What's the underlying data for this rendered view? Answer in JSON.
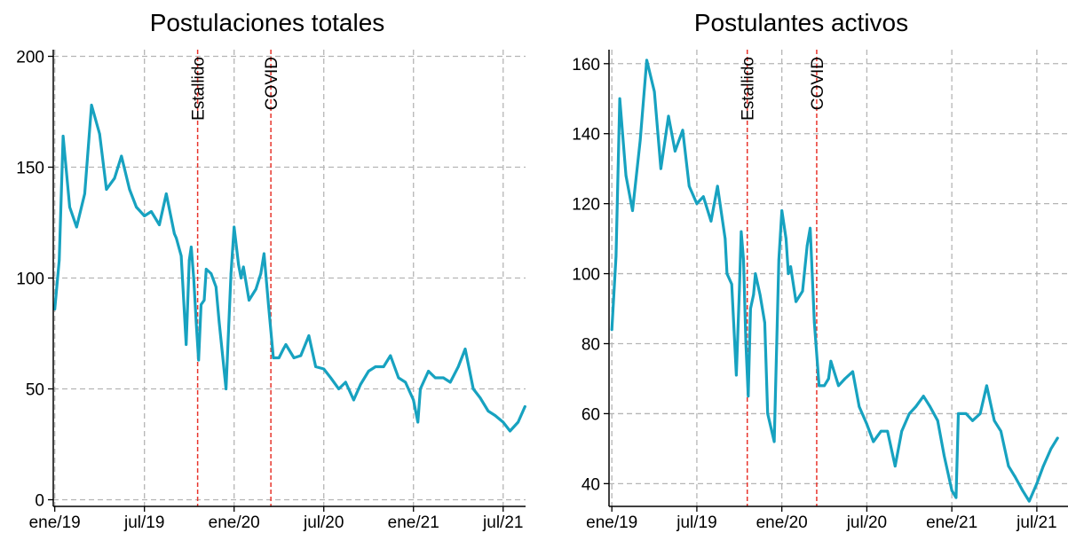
{
  "chart_data": [
    {
      "type": "line",
      "title": "Postulaciones totales",
      "xlabel": "",
      "ylabel": "",
      "x_ticks": [
        "ene/19",
        "jul/19",
        "ene/20",
        "jul/20",
        "ene/21",
        "jul/21"
      ],
      "x_tick_months": [
        0,
        6,
        12,
        18,
        24,
        30
      ],
      "xlim_months": [
        -0.1,
        31.5
      ],
      "y_ticks": [
        "0",
        "50",
        "100",
        "150",
        "200"
      ],
      "y_tick_values": [
        0,
        50,
        100,
        150,
        200
      ],
      "ylim": [
        -3,
        203
      ],
      "grid": true,
      "line_color": "#17a2c0",
      "event_color": "#e8342c",
      "events": [
        {
          "label": "Estallido",
          "date": "2019-10-18"
        },
        {
          "label": "COVID",
          "date": "2020-03-15"
        }
      ],
      "x": [
        "2019-01-01",
        "2019-01-10",
        "2019-01-18",
        "2019-02-01",
        "2019-02-15",
        "2019-03-01",
        "2019-03-15",
        "2019-04-01",
        "2019-04-15",
        "2019-05-01",
        "2019-05-15",
        "2019-06-01",
        "2019-06-15",
        "2019-07-01",
        "2019-07-15",
        "2019-08-01",
        "2019-08-15",
        "2019-09-01",
        "2019-09-05",
        "2019-09-15",
        "2019-09-25",
        "2019-10-01",
        "2019-10-05",
        "2019-10-10",
        "2019-10-15",
        "2019-10-20",
        "2019-10-25",
        "2019-11-01",
        "2019-11-05",
        "2019-11-15",
        "2019-11-25",
        "2019-12-01",
        "2019-12-15",
        "2019-12-25",
        "2020-01-01",
        "2020-01-10",
        "2020-01-15",
        "2020-01-20",
        "2020-02-01",
        "2020-02-15",
        "2020-02-25",
        "2020-03-01",
        "2020-03-10",
        "2020-03-20",
        "2020-04-01",
        "2020-04-10",
        "2020-04-15",
        "2020-05-01",
        "2020-05-15",
        "2020-06-01",
        "2020-06-15",
        "2020-07-01",
        "2020-07-15",
        "2020-08-01",
        "2020-08-15",
        "2020-09-01",
        "2020-09-15",
        "2020-10-01",
        "2020-10-15",
        "2020-11-01",
        "2020-11-15",
        "2020-12-01",
        "2020-12-15",
        "2021-01-01",
        "2021-01-10",
        "2021-01-15",
        "2021-02-01",
        "2021-02-15",
        "2021-03-01",
        "2021-03-15",
        "2021-04-01",
        "2021-04-15",
        "2021-05-01",
        "2021-05-15",
        "2021-06-01",
        "2021-06-15",
        "2021-07-01",
        "2021-07-15",
        "2021-08-01",
        "2021-08-15"
      ],
      "values": [
        86,
        108,
        164,
        132,
        123,
        138,
        178,
        165,
        140,
        145,
        155,
        140,
        132,
        128,
        130,
        124,
        138,
        120,
        118,
        110,
        70,
        108,
        114,
        100,
        80,
        63,
        88,
        90,
        104,
        102,
        96,
        80,
        50,
        102,
        123,
        106,
        100,
        105,
        90,
        95,
        102,
        111,
        88,
        64,
        64,
        68,
        70,
        64,
        65,
        74,
        60,
        59,
        55,
        50,
        53,
        45,
        52,
        58,
        60,
        60,
        65,
        55,
        53,
        45,
        35,
        50,
        58,
        55,
        55,
        53,
        60,
        68,
        50,
        46,
        40,
        38,
        35,
        31,
        35,
        42
      ]
    },
    {
      "type": "line",
      "title": "Postulantes activos",
      "xlabel": "",
      "ylabel": "",
      "x_ticks": [
        "ene/19",
        "jul/19",
        "ene/20",
        "jul/20",
        "ene/21",
        "jul/21"
      ],
      "x_tick_months": [
        0,
        6,
        12,
        18,
        24,
        30
      ],
      "xlim_months": [
        -0.2,
        32.2
      ],
      "y_ticks": [
        "40",
        "60",
        "80",
        "100",
        "120",
        "140",
        "160"
      ],
      "y_tick_values": [
        40,
        60,
        80,
        100,
        120,
        140,
        160
      ],
      "ylim": [
        33.5,
        164
      ],
      "grid": true,
      "line_color": "#17a2c0",
      "event_color": "#e8342c",
      "events": [
        {
          "label": "Estallido",
          "date": "2019-10-18"
        },
        {
          "label": "COVID",
          "date": "2020-03-15"
        }
      ],
      "x": [
        "2019-01-01",
        "2019-01-10",
        "2019-01-18",
        "2019-02-01",
        "2019-02-15",
        "2019-03-01",
        "2019-03-15",
        "2019-04-01",
        "2019-04-15",
        "2019-05-01",
        "2019-05-15",
        "2019-06-01",
        "2019-06-15",
        "2019-07-01",
        "2019-07-15",
        "2019-08-01",
        "2019-08-15",
        "2019-09-01",
        "2019-09-05",
        "2019-09-15",
        "2019-09-25",
        "2019-10-01",
        "2019-10-05",
        "2019-10-10",
        "2019-10-15",
        "2019-10-20",
        "2019-10-25",
        "2019-11-01",
        "2019-11-05",
        "2019-11-15",
        "2019-11-25",
        "2019-12-01",
        "2019-12-15",
        "2019-12-25",
        "2020-01-01",
        "2020-01-10",
        "2020-01-15",
        "2020-01-20",
        "2020-02-01",
        "2020-02-15",
        "2020-02-25",
        "2020-03-01",
        "2020-03-10",
        "2020-03-20",
        "2020-04-01",
        "2020-04-10",
        "2020-04-15",
        "2020-05-01",
        "2020-05-15",
        "2020-06-01",
        "2020-06-15",
        "2020-07-01",
        "2020-07-15",
        "2020-08-01",
        "2020-08-15",
        "2020-09-01",
        "2020-09-15",
        "2020-10-01",
        "2020-10-15",
        "2020-11-01",
        "2020-11-15",
        "2020-12-01",
        "2020-12-15",
        "2021-01-01",
        "2021-01-10",
        "2021-01-15",
        "2021-02-01",
        "2021-02-15",
        "2021-03-01",
        "2021-03-15",
        "2021-04-01",
        "2021-04-15",
        "2021-05-01",
        "2021-05-15",
        "2021-06-01",
        "2021-06-15",
        "2021-07-01",
        "2021-07-15",
        "2021-08-01",
        "2021-08-15"
      ],
      "values": [
        84,
        105,
        150,
        128,
        118,
        138,
        161,
        152,
        130,
        145,
        135,
        141,
        125,
        120,
        122,
        115,
        125,
        110,
        100,
        97,
        71,
        95,
        112,
        104,
        80,
        65,
        90,
        94,
        100,
        94,
        86,
        60,
        52,
        104,
        118,
        110,
        100,
        102,
        92,
        95,
        108,
        113,
        86,
        68,
        68,
        70,
        75,
        68,
        70,
        72,
        62,
        57,
        52,
        55,
        55,
        45,
        55,
        60,
        62,
        65,
        62,
        58,
        48,
        38,
        36,
        60,
        60,
        58,
        60,
        68,
        58,
        55,
        45,
        42,
        38,
        35,
        40,
        45,
        50,
        53
      ]
    }
  ]
}
